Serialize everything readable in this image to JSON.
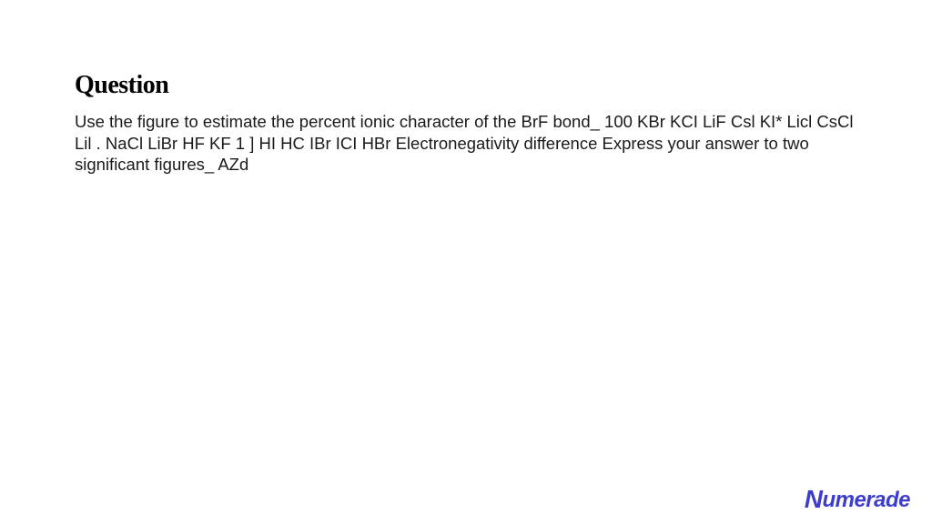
{
  "heading": "Question",
  "body": "Use the figure to estimate the percent ionic character of the BrF bond_ 100 KBr KCI LiF Csl KI* Licl CsCl Lil . NaCl LiBr HF KF 1 ] HI HC IBr ICI HBr Electronegativity difference Express your answer to two significant figures_ AZd",
  "brand": {
    "name": "Numerade",
    "color": "#3d3dcc"
  },
  "colors": {
    "background": "#ffffff",
    "heading_text": "#000000",
    "body_text": "#1a1a1a"
  },
  "typography": {
    "heading_fontsize": 28,
    "heading_weight": 700,
    "body_fontsize": 18.5,
    "body_lineheight": 1.28
  }
}
